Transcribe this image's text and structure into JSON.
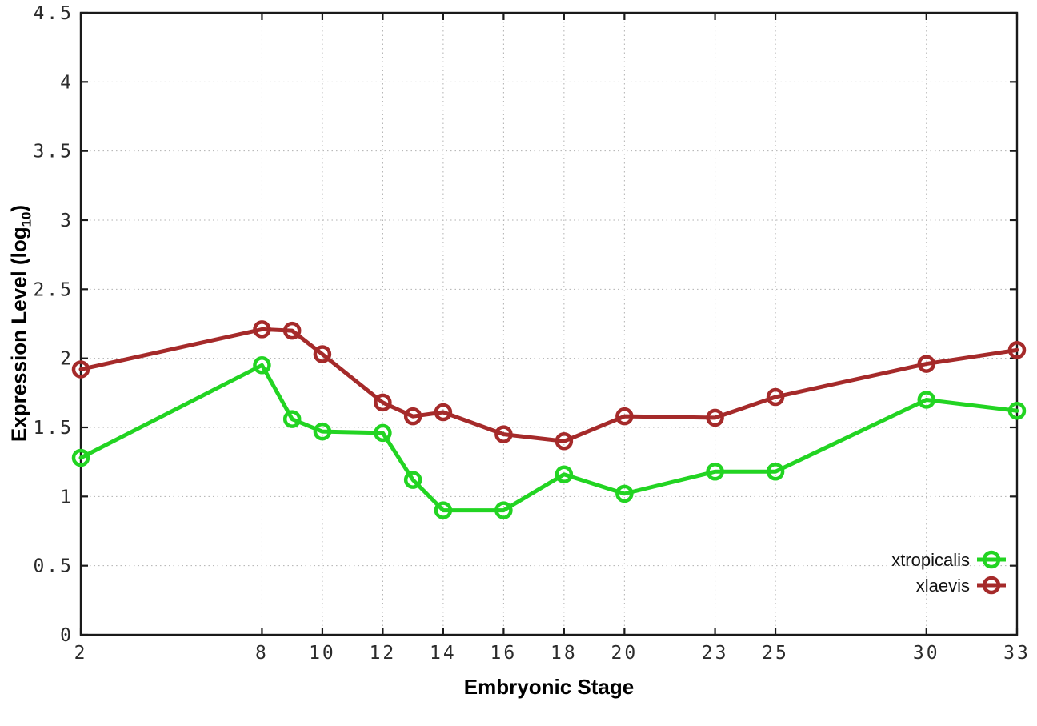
{
  "axes": {
    "x_label": "Embryonic Stage",
    "y_label_prefix": "Expression Level (log",
    "y_label_subscript": "10",
    "y_label_suffix": ")"
  },
  "legend": {
    "entries": [
      "xtropicalis",
      "xlaevis"
    ],
    "position": "bottom-right"
  },
  "chart_data": {
    "type": "line",
    "title": "",
    "xlabel": "Embryonic Stage",
    "ylabel": "Expression Level (log10)",
    "x": [
      2,
      8,
      9,
      10,
      12,
      13,
      14,
      16,
      18,
      20,
      23,
      25,
      30,
      33
    ],
    "series": [
      {
        "name": "xtropicalis",
        "color": "#22d422",
        "marker": "open-circle",
        "values": [
          1.28,
          1.95,
          1.56,
          1.47,
          1.46,
          1.12,
          0.9,
          0.9,
          1.16,
          1.02,
          1.18,
          1.18,
          1.7,
          1.62
        ]
      },
      {
        "name": "xlaevis",
        "color": "#a52a2a",
        "marker": "open-circle",
        "values": [
          1.92,
          2.21,
          2.2,
          2.03,
          1.68,
          1.58,
          1.61,
          1.45,
          1.4,
          1.58,
          1.57,
          1.72,
          1.96,
          2.06
        ]
      }
    ],
    "xlim": [
      2,
      33
    ],
    "ylim": [
      0,
      4.5
    ],
    "x_ticks": [
      2,
      8,
      10,
      12,
      14,
      16,
      18,
      20,
      23,
      25,
      30,
      33
    ],
    "y_ticks": [
      0,
      0.5,
      1,
      1.5,
      2,
      2.5,
      3,
      3.5,
      4,
      4.5
    ],
    "grid": "dotted",
    "legend_position": "bottom-right"
  }
}
